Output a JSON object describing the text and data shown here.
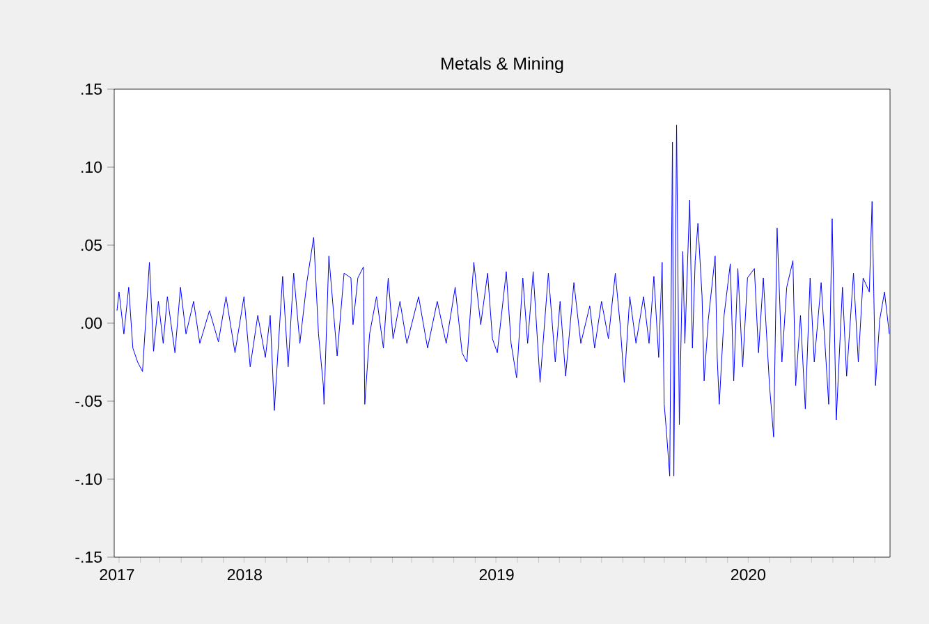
{
  "chart_data": {
    "type": "line",
    "title": "Metals & Mining",
    "xlim": [
      "2017-12-25",
      "2021-01-23"
    ],
    "xticks": [
      {
        "value": "2017-12-29",
        "label": "2017"
      },
      {
        "value": "2018-07-02",
        "label": "2018"
      },
      {
        "value": "2019-07-02",
        "label": "2019"
      },
      {
        "value": "2020-07-01",
        "label": "2020"
      },
      {
        "value": "2018-01-01",
        "label": null
      },
      {
        "value": "2019-01-01",
        "label": null
      },
      {
        "value": "2020-01-01",
        "label": null
      },
      {
        "value": "2021-01-01",
        "label": null
      }
    ],
    "ylim": [
      -0.15,
      0.15
    ],
    "yticks": [
      {
        "value": -0.15,
        "label": "-.15"
      },
      {
        "value": -0.1,
        "label": "-.10"
      },
      {
        "value": -0.05,
        "label": "-.05"
      },
      {
        "value": 0,
        "label": ".00"
      },
      {
        "value": 0.05,
        "label": ".05"
      },
      {
        "value": 0.1,
        "label": ".10"
      },
      {
        "value": 0.15,
        "label": ".15"
      }
    ],
    "grid": false,
    "marker": "none",
    "line_style": "solid",
    "series": [
      {
        "color": "#0000ff",
        "x": [
          "2017-12-29",
          "2018-01-01",
          "2018-01-08",
          "2018-01-15",
          "2018-01-21",
          "2018-01-28",
          "2018-02-04",
          "2018-02-14",
          "2018-02-20",
          "2018-02-27",
          "2018-03-06",
          "2018-03-12",
          "2018-03-23",
          "2018-03-31",
          "2018-04-08",
          "2018-04-19",
          "2018-04-28",
          "2018-05-12",
          "2018-05-25",
          "2018-06-05",
          "2018-06-18",
          "2018-07-01",
          "2018-07-10",
          "2018-07-21",
          "2018-08-01",
          "2018-08-08",
          "2018-08-14",
          "2018-08-26",
          "2018-09-03",
          "2018-09-11",
          "2018-09-20",
          "2018-09-30",
          "2018-10-10",
          "2018-10-17",
          "2018-10-24",
          "2018-10-25",
          "2018-11-01",
          "2018-11-13",
          "2018-11-23",
          "2018-12-03",
          "2018-12-06",
          "2018-12-13",
          "2018-12-21",
          "2018-12-23",
          "2018-12-30",
          "2019-01-09",
          "2019-01-19",
          "2019-01-26",
          "2019-02-02",
          "2019-02-12",
          "2019-02-22",
          "2019-03-11",
          "2019-03-24",
          "2019-04-07",
          "2019-04-20",
          "2019-05-03",
          "2019-05-13",
          "2019-05-20",
          "2019-05-30",
          "2019-06-09",
          "2019-06-19",
          "2019-06-26",
          "2019-07-03",
          "2019-07-09",
          "2019-07-16",
          "2019-07-23",
          "2019-07-31",
          "2019-08-09",
          "2019-08-16",
          "2019-08-24",
          "2019-09-03",
          "2019-09-15",
          "2019-09-25",
          "2019-10-02",
          "2019-10-10",
          "2019-10-22",
          "2019-11-01",
          "2019-11-14",
          "2019-11-21",
          "2019-12-01",
          "2019-12-11",
          "2019-12-21",
          "2019-12-28",
          "2020-01-03",
          "2020-01-11",
          "2020-01-20",
          "2020-01-31",
          "2020-02-08",
          "2020-02-15",
          "2020-02-22",
          "2020-02-27",
          "2020-03-01",
          "2020-03-04",
          "2020-03-09",
          "2020-03-13",
          "2020-03-15",
          "2020-03-19",
          "2020-03-23",
          "2020-03-28",
          "2020-03-31",
          "2020-04-07",
          "2020-04-11",
          "2020-04-15",
          "2020-04-19",
          "2020-04-25",
          "2020-04-28",
          "2020-05-04",
          "2020-05-14",
          "2020-05-17",
          "2020-05-20",
          "2020-05-27",
          "2020-06-05",
          "2020-06-10",
          "2020-06-16",
          "2020-06-23",
          "2020-06-30",
          "2020-07-10",
          "2020-07-16",
          "2020-07-23",
          "2020-08-01",
          "2020-08-07",
          "2020-08-12",
          "2020-08-19",
          "2020-08-26",
          "2020-09-04",
          "2020-09-08",
          "2020-09-15",
          "2020-09-22",
          "2020-09-29",
          "2020-10-05",
          "2020-10-15",
          "2020-10-26",
          "2020-10-31",
          "2020-11-06",
          "2020-11-15",
          "2020-11-21",
          "2020-12-01",
          "2020-12-08",
          "2020-12-15",
          "2020-12-24",
          "2020-12-28",
          "2021-01-02",
          "2021-01-08",
          "2021-01-15",
          "2021-01-22"
        ],
        "values": [
          0.008,
          0.02,
          -0.007,
          0.023,
          -0.016,
          -0.025,
          -0.031,
          0.039,
          -0.018,
          0.014,
          -0.013,
          0.017,
          -0.019,
          0.023,
          -0.007,
          0.014,
          -0.013,
          0.008,
          -0.012,
          0.017,
          -0.019,
          0.017,
          -0.028,
          0.005,
          -0.022,
          0.005,
          -0.056,
          0.03,
          -0.028,
          0.032,
          -0.013,
          0.026,
          0.055,
          -0.007,
          -0.04,
          -0.052,
          0.043,
          -0.021,
          0.032,
          0.029,
          -0.001,
          0.029,
          0.036,
          -0.052,
          -0.007,
          0.017,
          -0.016,
          0.029,
          -0.01,
          0.014,
          -0.013,
          0.017,
          -0.016,
          0.014,
          -0.013,
          0.023,
          -0.019,
          -0.025,
          0.039,
          -0.001,
          0.032,
          -0.01,
          -0.019,
          0.005,
          0.033,
          -0.013,
          -0.035,
          0.029,
          -0.013,
          0.033,
          -0.038,
          0.032,
          -0.025,
          0.014,
          -0.034,
          0.026,
          -0.013,
          0.011,
          -0.016,
          0.014,
          -0.01,
          0.032,
          -0.001,
          -0.038,
          0.017,
          -0.013,
          0.017,
          -0.013,
          0.03,
          -0.022,
          0.039,
          -0.052,
          -0.068,
          -0.098,
          0.116,
          -0.098,
          0.127,
          -0.065,
          0.046,
          -0.013,
          0.079,
          -0.016,
          0.04,
          0.064,
          0.017,
          -0.037,
          0.002,
          0.043,
          -0.022,
          -0.052,
          0.005,
          0.038,
          -0.037,
          0.035,
          -0.028,
          0.029,
          0.035,
          -0.019,
          0.029,
          -0.04,
          -0.073,
          0.061,
          -0.025,
          0.023,
          0.04,
          -0.04,
          0.005,
          -0.055,
          0.029,
          -0.025,
          0.026,
          -0.052,
          0.067,
          -0.062,
          0.023,
          -0.034,
          0.032,
          -0.025,
          0.029,
          0.02,
          0.078,
          -0.04,
          0.002,
          0.02,
          -0.007
        ]
      }
    ]
  }
}
